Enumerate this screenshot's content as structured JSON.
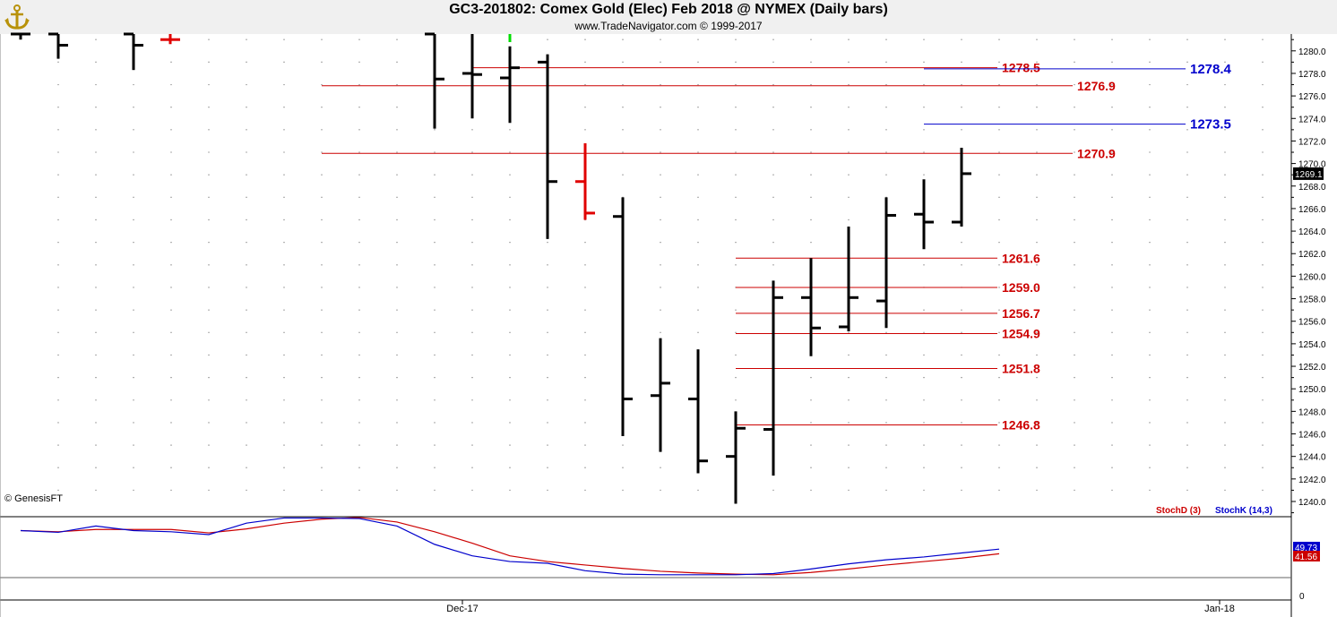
{
  "header": {
    "title": "GC3-201802:  Comex Gold (Elec) Feb 2018 @ NYMEX  (Daily bars)",
    "subtitle": "www.TradeNavigator.com © 1999-2017",
    "logo_icon": "anchor-icon",
    "watermark": "© GenesisFT"
  },
  "colors": {
    "bar_up": "#000000",
    "bar_marked": "#e00000",
    "bar_green_tick": "#00dd00",
    "level_red": "#cc0000",
    "level_blue": "#0000cc",
    "stoch_d": "#cc0000",
    "stoch_k": "#0000cc",
    "grid_dot": "#888888"
  },
  "chart_data": [
    {
      "type": "ohlc",
      "title": "GC3-201802:  Comex Gold (Elec) Feb 2018 @ NYMEX  (Daily bars)",
      "ylim": [
        1238.5,
        1282
      ],
      "y_ticks": [
        "1240.0",
        "1242.0",
        "1244.0",
        "1246.0",
        "1248.0",
        "1250.0",
        "1252.0",
        "1254.0",
        "1256.0",
        "1258.0",
        "1260.0",
        "1262.0",
        "1264.0",
        "1266.0",
        "1268.0",
        "1270.0",
        "1272.0",
        "1274.0",
        "1276.0",
        "1278.0",
        "1280.0"
      ],
      "x_ticks": [
        "Dec-17",
        "Jan-18"
      ],
      "last_price": "1269.1",
      "bars": [
        {
          "open": 1282,
          "high": 1282,
          "low": 1281,
          "close": 1281.5,
          "color": "black"
        },
        {
          "open": 1282,
          "high": 1282,
          "low": 1279.3,
          "close": 1280.5,
          "color": "black"
        },
        {
          "open": 1282,
          "high": 1282,
          "low": 1278.3,
          "close": 1280.5,
          "color": "black"
        },
        {
          "open": 1281,
          "high": 1282,
          "low": 1280.6,
          "close": 1281,
          "color": "red"
        },
        {
          "open": 1282,
          "high": 1282,
          "low": 1273.1,
          "close": 1277.5,
          "color": "black"
        },
        {
          "open": 1278,
          "high": 1282,
          "low": 1274,
          "close": 1277.9,
          "color": "black"
        },
        {
          "open": 1277.6,
          "high": 1280.4,
          "low": 1273.6,
          "close": 1278.5,
          "color": "black"
        },
        {
          "open": 1279,
          "high": 1279.7,
          "low": 1263.3,
          "close": 1268.4,
          "color": "black"
        },
        {
          "open": 1268.4,
          "high": 1271.8,
          "low": 1265,
          "close": 1265.6,
          "color": "red"
        },
        {
          "open": 1265.3,
          "high": 1267,
          "low": 1245.8,
          "close": 1249.1,
          "color": "black"
        },
        {
          "open": 1249.4,
          "high": 1254.5,
          "low": 1244.4,
          "close": 1250.5,
          "color": "black"
        },
        {
          "open": 1249.1,
          "high": 1253.5,
          "low": 1242.5,
          "close": 1243.6,
          "color": "black"
        },
        {
          "open": 1244,
          "high": 1248,
          "low": 1239.8,
          "close": 1246.5,
          "color": "black"
        },
        {
          "open": 1246.4,
          "high": 1259.6,
          "low": 1242.3,
          "close": 1258.1,
          "color": "black"
        },
        {
          "open": 1258.1,
          "high": 1261.6,
          "low": 1252.9,
          "close": 1255.4,
          "color": "black"
        },
        {
          "open": 1255.5,
          "high": 1264.4,
          "low": 1255.1,
          "close": 1258.1,
          "color": "black"
        },
        {
          "open": 1257.8,
          "high": 1267,
          "low": 1255.4,
          "close": 1265.4,
          "color": "black"
        },
        {
          "open": 1265.5,
          "high": 1268.6,
          "low": 1262.4,
          "close": 1264.8,
          "color": "black"
        },
        {
          "open": 1264.8,
          "high": 1271.4,
          "low": 1264.4,
          "close": 1269.1,
          "color": "black"
        }
      ],
      "levels": [
        {
          "value": 1278.5,
          "label": "1278.5",
          "color": "red"
        },
        {
          "value": 1276.9,
          "label": "1276.9",
          "color": "red"
        },
        {
          "value": 1270.9,
          "label": "1270.9",
          "color": "red"
        },
        {
          "value": 1261.6,
          "label": "1261.6",
          "color": "red"
        },
        {
          "value": 1259.0,
          "label": "1259.0",
          "color": "red"
        },
        {
          "value": 1256.7,
          "label": "1256.7",
          "color": "red"
        },
        {
          "value": 1254.9,
          "label": "1254.9",
          "color": "red"
        },
        {
          "value": 1251.8,
          "label": "1251.8",
          "color": "red"
        },
        {
          "value": 1246.8,
          "label": "1246.8",
          "color": "red"
        },
        {
          "value": 1278.4,
          "label": "1278.4",
          "color": "blue"
        },
        {
          "value": 1273.5,
          "label": "1273.5",
          "color": "blue"
        }
      ]
    },
    {
      "type": "line",
      "title": "",
      "ylim": [
        -5,
        110
      ],
      "y_ticks": [
        "0"
      ],
      "legend": [
        "StochD (3)",
        "StochK (14,3)"
      ],
      "last_values": {
        "StochK (14,3)": "49.73",
        "StochD (3)": "41.56"
      },
      "series": [
        {
          "name": "StochD (3)",
          "color": "red",
          "values": [
            82,
            80,
            84,
            84,
            84,
            78,
            85,
            95,
            102,
            105,
            97,
            80,
            60,
            38,
            28,
            22,
            16,
            11,
            8,
            6,
            5,
            9,
            15,
            22,
            28,
            34,
            41.56
          ]
        },
        {
          "name": "StochK (14,3)",
          "color": "blue",
          "values": [
            82,
            79,
            90,
            82,
            80,
            75,
            95,
            104,
            104,
            103,
            90,
            58,
            38,
            28,
            25,
            12,
            6,
            5,
            5,
            5,
            7,
            15,
            24,
            31,
            36,
            43,
            49.73
          ]
        }
      ]
    }
  ]
}
